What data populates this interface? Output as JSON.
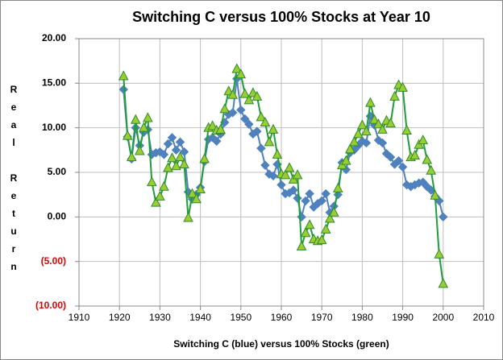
{
  "chart_data": {
    "type": "line",
    "title": "Switching C versus 100% Stocks at Year 10",
    "x_label": "Switching C (blue) versus 100% Stocks (green)",
    "y_label": "Real Return",
    "x": [
      1921,
      1922,
      1923,
      1924,
      1925,
      1926,
      1927,
      1928,
      1929,
      1930,
      1931,
      1932,
      1933,
      1934,
      1935,
      1936,
      1937,
      1938,
      1939,
      1940,
      1941,
      1942,
      1943,
      1944,
      1945,
      1946,
      1947,
      1948,
      1949,
      1950,
      1951,
      1952,
      1953,
      1954,
      1955,
      1956,
      1957,
      1958,
      1959,
      1960,
      1961,
      1962,
      1963,
      1964,
      1965,
      1966,
      1967,
      1968,
      1969,
      1970,
      1971,
      1972,
      1973,
      1974,
      1975,
      1976,
      1977,
      1978,
      1979,
      1980,
      1981,
      1982,
      1983,
      1984,
      1985,
      1986,
      1987,
      1988,
      1989,
      1990,
      1991,
      1992,
      1993,
      1994,
      1995,
      1996,
      1997,
      1998,
      1999,
      2000
    ],
    "series": [
      {
        "color": "#4f81bd",
        "marker": "diamond",
        "marker_fill": "#4f81bd",
        "marker_stroke": "#4f81bd",
        "values": [
          14.3,
          9.0,
          6.5,
          10.0,
          8.0,
          9.5,
          9.8,
          7.0,
          7.2,
          7.3,
          7.0,
          8.2,
          8.9,
          7.5,
          8.4,
          7.3,
          2.8,
          2.0,
          2.5,
          3.3,
          6.2,
          8.7,
          8.9,
          8.5,
          9.3,
          10.6,
          11.5,
          11.7,
          15.5,
          12.0,
          11.0,
          10.4,
          9.3,
          9.6,
          7.7,
          5.8,
          4.8,
          4.6,
          5.9,
          3.6,
          2.6,
          2.7,
          3.0,
          2.1,
          0.0,
          1.8,
          2.6,
          1.1,
          1.5,
          1.8,
          2.6,
          0.5,
          1.2,
          2.5,
          6.1,
          5.3,
          7.2,
          7.5,
          8.0,
          8.5,
          8.3,
          11.3,
          10.3,
          8.6,
          8.3,
          7.1,
          6.7,
          5.9,
          6.3,
          5.6,
          3.6,
          3.4,
          3.6,
          3.8,
          3.9,
          3.4,
          3.0,
          2.3,
          1.8,
          0.0
        ]
      },
      {
        "color": "#1e9e3a",
        "marker": "triangle",
        "marker_fill": "#9acd32",
        "marker_stroke": "#2e8b2e",
        "values": [
          15.8,
          9.1,
          6.7,
          10.9,
          7.4,
          10.0,
          11.1,
          3.9,
          1.6,
          2.3,
          3.4,
          5.5,
          6.6,
          5.7,
          6.7,
          5.9,
          -0.1,
          2.6,
          2.0,
          3.1,
          6.5,
          10.0,
          10.2,
          9.7,
          9.8,
          12.1,
          14.1,
          13.7,
          16.6,
          16.0,
          13.8,
          13.1,
          13.9,
          13.5,
          11.2,
          10.6,
          8.4,
          9.8,
          7.0,
          4.8,
          4.7,
          5.5,
          4.2,
          4.7,
          -3.3,
          -1.8,
          -0.9,
          -2.5,
          -2.7,
          -2.6,
          -1.4,
          -0.2,
          0.5,
          3.2,
          5.8,
          6.3,
          7.6,
          8.4,
          9.3,
          10.3,
          9.6,
          12.8,
          10.9,
          10.4,
          9.8,
          10.8,
          10.5,
          13.5,
          14.8,
          14.5,
          9.7,
          6.7,
          6.9,
          8.1,
          8.6,
          6.4,
          5.2,
          2.4,
          -4.2,
          -7.5
        ]
      }
    ],
    "xlim": [
      1910,
      2010
    ],
    "xticks": [
      1910,
      1920,
      1930,
      1940,
      1950,
      1960,
      1970,
      1980,
      1990,
      2000,
      2010
    ],
    "ylim": [
      -10,
      20
    ],
    "yticks": [
      {
        "value": -10,
        "label": "(10.00)"
      },
      {
        "value": -5,
        "label": "(5.00)"
      },
      {
        "value": 0,
        "label": "0.00"
      },
      {
        "value": 5,
        "label": "5.00"
      },
      {
        "value": 10,
        "label": "10.00"
      },
      {
        "value": 15,
        "label": "15.00"
      },
      {
        "value": 20,
        "label": "20.00"
      }
    ],
    "negative_tick_color": "#e00000",
    "grid": true
  }
}
